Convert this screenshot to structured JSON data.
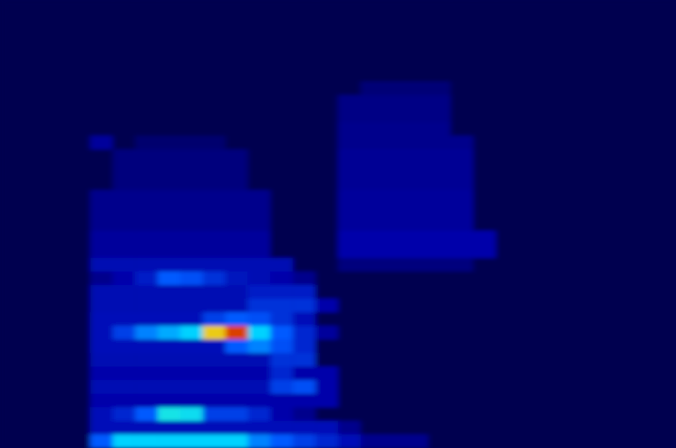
{
  "chart_data": {
    "type": "heatmap",
    "tick_labels": false,
    "zlim": [
      0,
      100
    ],
    "values": [
      [
        0,
        0,
        0,
        0,
        0,
        0,
        0,
        0,
        0,
        0,
        0,
        0,
        0,
        0,
        0,
        0,
        0,
        0,
        0,
        0,
        0,
        0,
        0,
        0,
        0,
        0,
        0,
        0,
        0,
        0
      ],
      [
        0,
        0,
        0,
        0,
        0,
        0,
        0,
        0,
        0,
        0,
        0,
        0,
        0,
        0,
        0,
        0,
        0,
        0,
        0,
        0,
        0,
        0,
        0,
        0,
        0,
        0,
        0,
        0,
        0,
        0
      ],
      [
        0,
        0,
        0,
        0,
        0,
        0,
        0,
        0,
        0,
        0,
        0,
        0,
        0,
        0,
        0,
        0,
        0,
        0,
        0,
        0,
        0,
        0,
        0,
        0,
        0,
        0,
        0,
        0,
        0,
        0
      ],
      [
        0,
        0,
        0,
        0,
        0,
        0,
        0,
        0,
        0,
        0,
        0,
        0,
        0,
        0,
        0,
        0,
        0,
        0,
        0,
        0,
        0,
        0,
        0,
        0,
        0,
        0,
        0,
        0,
        0,
        0
      ],
      [
        0,
        0,
        0,
        0,
        0,
        0,
        0,
        0,
        0,
        0,
        0,
        0,
        0,
        0,
        0,
        0,
        0,
        0,
        0,
        0,
        0,
        0,
        0,
        0,
        0,
        0,
        0,
        0,
        0,
        0
      ],
      [
        0,
        0,
        0,
        0,
        0,
        0,
        0,
        0,
        0,
        0,
        0,
        0,
        0,
        0,
        0,
        0,
        0,
        0,
        0,
        0,
        0,
        0,
        0,
        0,
        0,
        0,
        0,
        0,
        0,
        0
      ],
      [
        0,
        0,
        0,
        0,
        0,
        0,
        0,
        0,
        0,
        0,
        0,
        0,
        0,
        0,
        0,
        0,
        5,
        5,
        5,
        5,
        0,
        0,
        0,
        0,
        0,
        0,
        0,
        0,
        0,
        0
      ],
      [
        0,
        0,
        0,
        0,
        0,
        0,
        0,
        0,
        0,
        0,
        0,
        0,
        0,
        0,
        0,
        7,
        7,
        7,
        7,
        7,
        0,
        0,
        0,
        0,
        0,
        0,
        0,
        0,
        0,
        0
      ],
      [
        0,
        0,
        0,
        0,
        0,
        0,
        0,
        0,
        0,
        0,
        0,
        0,
        0,
        0,
        0,
        7,
        7,
        7,
        7,
        7,
        0,
        0,
        0,
        0,
        0,
        0,
        0,
        0,
        0,
        0
      ],
      [
        0,
        0,
        0,
        0,
        0,
        0,
        0,
        0,
        0,
        0,
        0,
        0,
        0,
        0,
        0,
        8,
        8,
        8,
        8,
        8,
        0,
        0,
        0,
        0,
        0,
        0,
        0,
        0,
        0,
        0
      ],
      [
        0,
        0,
        0,
        0,
        10,
        0,
        4,
        4,
        4,
        4,
        0,
        0,
        0,
        0,
        0,
        8,
        8,
        8,
        8,
        8,
        8,
        0,
        0,
        0,
        0,
        0,
        0,
        0,
        0,
        0
      ],
      [
        0,
        0,
        0,
        0,
        0,
        6,
        6,
        6,
        6,
        6,
        6,
        0,
        0,
        0,
        0,
        9,
        9,
        9,
        9,
        9,
        9,
        0,
        0,
        0,
        0,
        0,
        0,
        0,
        0,
        0
      ],
      [
        0,
        0,
        0,
        0,
        0,
        6,
        6,
        6,
        6,
        6,
        6,
        0,
        0,
        0,
        0,
        9,
        9,
        9,
        9,
        9,
        9,
        0,
        0,
        0,
        0,
        0,
        0,
        0,
        0,
        0
      ],
      [
        0,
        0,
        0,
        0,
        0,
        6,
        6,
        6,
        6,
        6,
        6,
        0,
        0,
        0,
        0,
        9,
        9,
        9,
        9,
        9,
        9,
        0,
        0,
        0,
        0,
        0,
        0,
        0,
        0,
        0
      ],
      [
        0,
        0,
        0,
        0,
        8,
        8,
        8,
        8,
        8,
        8,
        8,
        8,
        0,
        0,
        0,
        10,
        10,
        10,
        10,
        10,
        10,
        0,
        0,
        0,
        0,
        0,
        0,
        0,
        0,
        0
      ],
      [
        0,
        0,
        0,
        0,
        8,
        8,
        8,
        8,
        8,
        8,
        8,
        8,
        0,
        0,
        0,
        10,
        10,
        10,
        10,
        10,
        10,
        0,
        0,
        0,
        0,
        0,
        0,
        0,
        0,
        0
      ],
      [
        0,
        0,
        0,
        0,
        8,
        8,
        8,
        8,
        8,
        8,
        8,
        8,
        0,
        0,
        0,
        10,
        10,
        10,
        10,
        10,
        10,
        0,
        0,
        0,
        0,
        0,
        0,
        0,
        0,
        0
      ],
      [
        0,
        0,
        0,
        0,
        10,
        10,
        10,
        10,
        10,
        10,
        10,
        10,
        0,
        0,
        0,
        12,
        12,
        12,
        12,
        12,
        12,
        12,
        0,
        0,
        0,
        0,
        0,
        0,
        0,
        0
      ],
      [
        0,
        0,
        0,
        0,
        10,
        10,
        10,
        10,
        10,
        10,
        10,
        10,
        0,
        0,
        0,
        12,
        12,
        12,
        12,
        12,
        12,
        12,
        0,
        0,
        0,
        0,
        0,
        0,
        0,
        0
      ],
      [
        0,
        0,
        0,
        0,
        14,
        14,
        14,
        14,
        14,
        14,
        14,
        14,
        14,
        0,
        0,
        6,
        6,
        6,
        6,
        6,
        6,
        0,
        0,
        0,
        0,
        0,
        0,
        0,
        0,
        0
      ],
      [
        0,
        0,
        0,
        0,
        8,
        12,
        18,
        30,
        28,
        22,
        16,
        14,
        12,
        8,
        0,
        0,
        0,
        0,
        0,
        0,
        0,
        0,
        0,
        0,
        0,
        0,
        0,
        0,
        0,
        0
      ],
      [
        0,
        0,
        0,
        0,
        14,
        14,
        14,
        14,
        14,
        14,
        14,
        18,
        18,
        18,
        0,
        0,
        0,
        0,
        0,
        0,
        0,
        0,
        0,
        0,
        0,
        0,
        0,
        0,
        0,
        0
      ],
      [
        0,
        0,
        0,
        0,
        14,
        14,
        14,
        14,
        14,
        14,
        14,
        22,
        22,
        22,
        12,
        0,
        0,
        0,
        0,
        0,
        0,
        0,
        0,
        0,
        0,
        0,
        0,
        0,
        0,
        0
      ],
      [
        0,
        0,
        0,
        0,
        15,
        15,
        15,
        15,
        15,
        25,
        30,
        28,
        22,
        15,
        0,
        0,
        0,
        0,
        0,
        0,
        0,
        0,
        0,
        0,
        0,
        0,
        0,
        0,
        0,
        0
      ],
      [
        0,
        0,
        0,
        0,
        15,
        25,
        35,
        40,
        45,
        80,
        95,
        45,
        30,
        20,
        10,
        0,
        0,
        0,
        0,
        0,
        0,
        0,
        0,
        0,
        0,
        0,
        0,
        0,
        0,
        0
      ],
      [
        0,
        0,
        0,
        0,
        15,
        15,
        15,
        15,
        15,
        15,
        30,
        35,
        28,
        20,
        0,
        0,
        0,
        0,
        0,
        0,
        0,
        0,
        0,
        0,
        0,
        0,
        0,
        0,
        0,
        0
      ],
      [
        0,
        0,
        0,
        0,
        14,
        14,
        14,
        14,
        14,
        14,
        14,
        14,
        22,
        22,
        0,
        0,
        0,
        0,
        0,
        0,
        0,
        0,
        0,
        0,
        0,
        0,
        0,
        0,
        0,
        0
      ],
      [
        0,
        0,
        0,
        0,
        12,
        12,
        12,
        12,
        12,
        12,
        12,
        12,
        20,
        12,
        12,
        0,
        0,
        0,
        0,
        0,
        0,
        0,
        0,
        0,
        0,
        0,
        0,
        0,
        0,
        0
      ],
      [
        0,
        0,
        0,
        0,
        14,
        14,
        14,
        14,
        14,
        14,
        14,
        14,
        25,
        28,
        12,
        0,
        0,
        0,
        0,
        0,
        0,
        0,
        0,
        0,
        0,
        0,
        0,
        0,
        0,
        0
      ],
      [
        0,
        0,
        0,
        0,
        12,
        12,
        12,
        12,
        12,
        12,
        12,
        12,
        12,
        12,
        12,
        0,
        0,
        0,
        0,
        0,
        0,
        0,
        0,
        0,
        0,
        0,
        0,
        0,
        0,
        0
      ],
      [
        0,
        0,
        0,
        0,
        15,
        20,
        30,
        50,
        48,
        25,
        25,
        20,
        12,
        8,
        0,
        0,
        0,
        0,
        0,
        0,
        0,
        0,
        0,
        0,
        0,
        0,
        0,
        0,
        0,
        0
      ],
      [
        0,
        0,
        0,
        0,
        15,
        15,
        15,
        15,
        15,
        15,
        15,
        15,
        15,
        15,
        15,
        8,
        0,
        0,
        0,
        0,
        0,
        0,
        0,
        0,
        0,
        0,
        0,
        0,
        0,
        0
      ],
      [
        0,
        0,
        0,
        0,
        30,
        45,
        45,
        45,
        45,
        45,
        45,
        35,
        30,
        25,
        20,
        15,
        8,
        8,
        8,
        0,
        0,
        0,
        0,
        0,
        0,
        0,
        0,
        0,
        0,
        0
      ]
    ]
  }
}
